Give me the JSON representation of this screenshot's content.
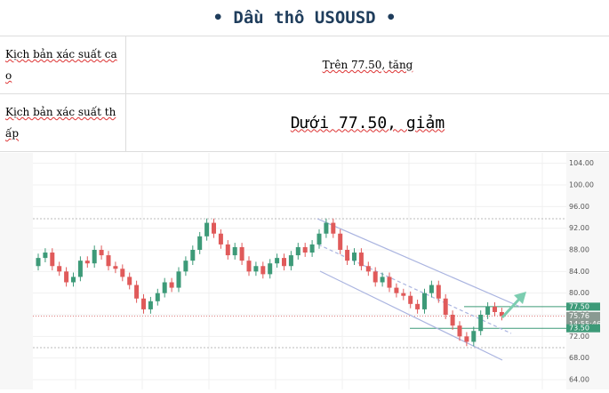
{
  "header": {
    "title": "• Dầu thô USOUSD •"
  },
  "table": {
    "rows": [
      [
        "Kịch bản xác suất cao",
        "Trên 77.50, tăng"
      ],
      [
        "Kịch bản xác suất thấp",
        "Dưới 77.50, giảm"
      ]
    ]
  },
  "chart": {
    "type": "candlestick",
    "up_color": "#3d9a78",
    "down_color": "#e05a5a",
    "ylim": [
      64,
      106
    ],
    "yticks": [
      {
        "value": 64,
        "label": "64.00"
      },
      {
        "value": 68,
        "label": "68.00"
      },
      {
        "value": 72,
        "label": "72.00"
      },
      {
        "value": 76,
        "label": "76.00"
      },
      {
        "value": 80,
        "label": "80.00"
      },
      {
        "value": 84,
        "label": "84.00"
      },
      {
        "value": 88,
        "label": "88.00"
      },
      {
        "value": 92,
        "label": "92.00"
      },
      {
        "value": 96,
        "label": "96.00"
      },
      {
        "value": 100,
        "label": "100.00"
      },
      {
        "value": 104,
        "label": "104.00"
      }
    ],
    "candles": [
      [
        85,
        87.3,
        84.2,
        86.5
      ],
      [
        86.5,
        88.3,
        85.7,
        87.5
      ],
      [
        87.5,
        88.3,
        84.2,
        85
      ],
      [
        85,
        85.8,
        83.2,
        84
      ],
      [
        84,
        84.8,
        81.2,
        82
      ],
      [
        82,
        83.8,
        81.2,
        83
      ],
      [
        83,
        86.8,
        82.2,
        86
      ],
      [
        86,
        86.8,
        84.7,
        85.5
      ],
      [
        85.5,
        88.8,
        84.7,
        88
      ],
      [
        88,
        88.8,
        86.2,
        87
      ],
      [
        87,
        87.8,
        84.2,
        85
      ],
      [
        85,
        85.8,
        83.7,
        84.5
      ],
      [
        84.5,
        85.3,
        82.2,
        83
      ],
      [
        83,
        83.8,
        80.7,
        81.5
      ],
      [
        81.5,
        82.3,
        78.2,
        79
      ],
      [
        79,
        79.8,
        76.2,
        77
      ],
      [
        77,
        79.3,
        76.2,
        78.5
      ],
      [
        78.5,
        80.8,
        77.7,
        80
      ],
      [
        80,
        82.8,
        79.2,
        82
      ],
      [
        82,
        82.8,
        80.2,
        81
      ],
      [
        81,
        84.8,
        80.2,
        84
      ],
      [
        84,
        86.8,
        83.2,
        86
      ],
      [
        86,
        88.8,
        85.2,
        88
      ],
      [
        88,
        91.3,
        87.2,
        90.5
      ],
      [
        90.5,
        93.8,
        89.7,
        93
      ],
      [
        93,
        93.8,
        90.2,
        91
      ],
      [
        91,
        91.8,
        88.2,
        89
      ],
      [
        89,
        89.8,
        86.2,
        87
      ],
      [
        87,
        89.3,
        86.2,
        88.5
      ],
      [
        88.5,
        89.3,
        85.2,
        86
      ],
      [
        86,
        86.8,
        83.2,
        84
      ],
      [
        84,
        85.8,
        83.2,
        85
      ],
      [
        85,
        85.8,
        82.7,
        83.5
      ],
      [
        83.5,
        86.3,
        82.7,
        85.5
      ],
      [
        85.5,
        87.3,
        84.7,
        86.5
      ],
      [
        86.5,
        87.3,
        84.2,
        85
      ],
      [
        85,
        87.8,
        84.2,
        87
      ],
      [
        87,
        89.3,
        86.2,
        88.5
      ],
      [
        88.5,
        89.3,
        86.7,
        87.5
      ],
      [
        87.5,
        89.8,
        86.7,
        89
      ],
      [
        89,
        91.8,
        88.2,
        91
      ],
      [
        91,
        93.8,
        90.2,
        93
      ],
      [
        93,
        93.8,
        90.2,
        91
      ],
      [
        91,
        91.8,
        87.2,
        88
      ],
      [
        88,
        88.8,
        85.2,
        86
      ],
      [
        86,
        88.3,
        85.2,
        87.5
      ],
      [
        87.5,
        88.3,
        84.2,
        85
      ],
      [
        85,
        85.8,
        83.2,
        84
      ],
      [
        84,
        84.8,
        81.2,
        82
      ],
      [
        82,
        83.8,
        81.2,
        83
      ],
      [
        83,
        83.8,
        80.2,
        81
      ],
      [
        81,
        81.8,
        79.2,
        80
      ],
      [
        80,
        80.8,
        78.7,
        79.5
      ],
      [
        79.5,
        80.3,
        77.2,
        78
      ],
      [
        78,
        78.8,
        76.2,
        77
      ],
      [
        77,
        80.8,
        76.2,
        80
      ],
      [
        80,
        82.3,
        79.2,
        81.5
      ],
      [
        81.5,
        82.3,
        78.2,
        79
      ],
      [
        79,
        79.8,
        75.2,
        76
      ],
      [
        76,
        76.8,
        73.2,
        74
      ],
      [
        74,
        74.8,
        71.2,
        72
      ],
      [
        72,
        72.8,
        70.2,
        71
      ],
      [
        71,
        73.8,
        70.2,
        73
      ],
      [
        73,
        76.8,
        72.2,
        76
      ],
      [
        76,
        78.3,
        75.2,
        77.5
      ],
      [
        77.5,
        78.3,
        75.7,
        76.5
      ],
      [
        76.5,
        77.3,
        74.96,
        75.76
      ]
    ],
    "price_lines": [
      {
        "value": 77.5,
        "label": "77.50",
        "color": "#3d9a78"
      },
      {
        "value": 75.76,
        "label": "75.76",
        "color": "#8a9a92"
      },
      {
        "value": 73.5,
        "label": "73.50",
        "color": "#3d9a78"
      }
    ],
    "countdown": "14:55:46"
  }
}
